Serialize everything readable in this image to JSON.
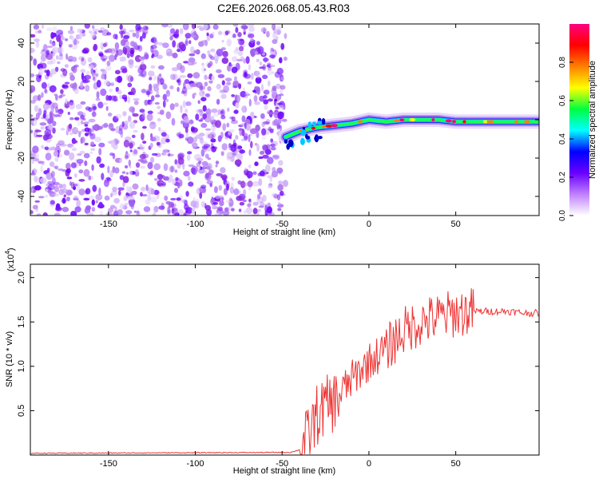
{
  "title": "C2E6.2026.068.05.43.R03",
  "colors": {
    "line": "#ee3333",
    "purple": "#8a2be2",
    "colorbar_stops": [
      "#ffffff",
      "#c080ff",
      "#6a00ff",
      "#0000ff",
      "#00ffff",
      "#00ff40",
      "#ffff00",
      "#ff8000",
      "#ff0000",
      "#ff0080"
    ]
  },
  "chart_data": [
    {
      "type": "heatmap",
      "xlabel": "Height of straight line (km)",
      "ylabel": "Frequency (Hz)",
      "xlim": [
        -195,
        98
      ],
      "ylim": [
        -50,
        50
      ],
      "x_ticks": [
        -150,
        -100,
        -50,
        0,
        50
      ],
      "y_ticks": [
        -40,
        -20,
        0,
        20,
        40
      ],
      "colorbar": {
        "label": "Normalized spectral amplitude",
        "range": [
          0,
          1
        ],
        "ticks": [
          "0.0",
          "0.2",
          "0.4",
          "0.6",
          "0.8"
        ]
      },
      "noise_region_x": [
        -195,
        -48
      ],
      "signal_track": {
        "x": [
          -48,
          -40,
          -30,
          -20,
          -10,
          0,
          10,
          20,
          30,
          40,
          50,
          60,
          70,
          80,
          90,
          98
        ],
        "frequency": [
          -9,
          -6,
          -4,
          -3,
          -2,
          0,
          -1,
          0,
          0,
          0,
          -1,
          -1,
          -1,
          -1,
          -1,
          -1
        ]
      }
    },
    {
      "type": "line",
      "xlabel": "Height of straight line (km)",
      "ylabel": "SNR (10 * v/v)",
      "multiplier_label": "(x10",
      "multiplier_exp": "4",
      "xlim": [
        -195,
        98
      ],
      "ylim": [
        0,
        2.15
      ],
      "x_ticks": [
        -150,
        -100,
        -50,
        0,
        50
      ],
      "y_ticks": [
        "0.5",
        "1.0",
        "1.5",
        "2.0"
      ],
      "envelope": {
        "x": [
          -195,
          -45,
          -40,
          -35,
          -30,
          -25,
          -20,
          -10,
          0,
          10,
          20,
          30,
          40,
          50,
          60,
          70,
          80,
          90,
          98
        ],
        "y": [
          0.02,
          0.03,
          0.06,
          0.2,
          0.45,
          0.55,
          0.6,
          0.85,
          1.05,
          1.2,
          1.4,
          1.5,
          1.55,
          1.6,
          1.62,
          1.62,
          1.62,
          1.6,
          1.6
        ]
      }
    }
  ]
}
